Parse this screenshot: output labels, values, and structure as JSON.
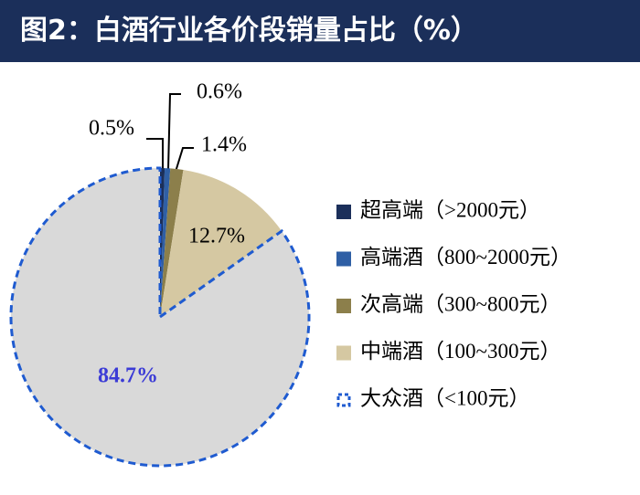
{
  "chart_data": {
    "type": "pie",
    "title": "图2：白酒行业各价段销量占比（%）",
    "categories": [
      "超高端（>2000元）",
      "高端酒（800~2000元）",
      "次高端（300~800元）",
      "中端酒（100~300元）",
      "大众酒（<100元）"
    ],
    "values": [
      0.5,
      0.6,
      1.4,
      12.7,
      84.7
    ],
    "value_labels": [
      "0.5%",
      "0.6%",
      "1.4%",
      "12.7%",
      "84.7%"
    ],
    "colors": [
      "#1b2f5a",
      "#2f5fa5",
      "#8c7f4b",
      "#d5c8a2",
      "#d9d9d9"
    ],
    "edge_colors": [
      null,
      null,
      null,
      null,
      "#1f5bd0"
    ],
    "legend": "right"
  }
}
